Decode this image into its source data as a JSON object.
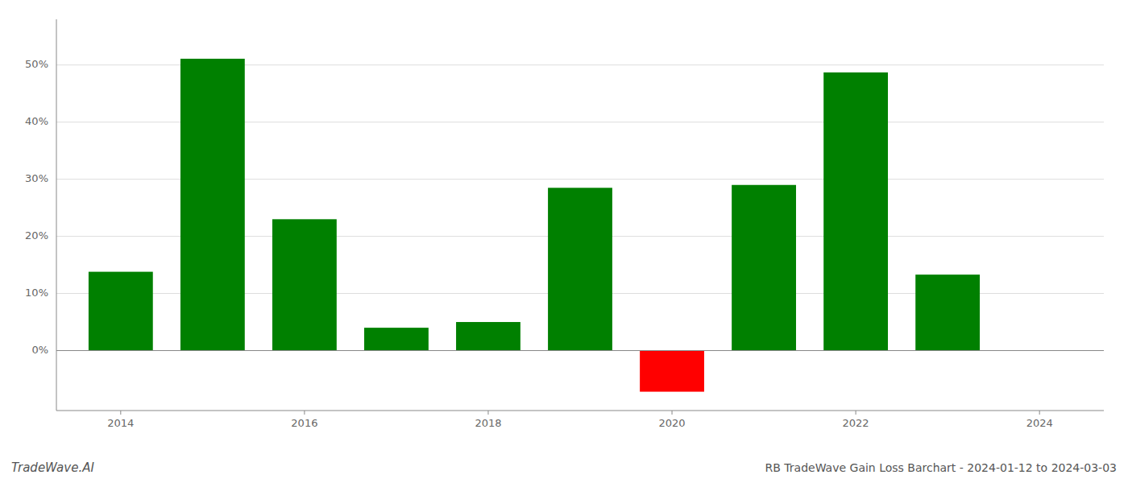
{
  "chart_data": {
    "type": "bar",
    "title": "RB TradeWave Gain Loss Barchart - 2024-01-12 to 2024-03-03",
    "annotations": [
      "TradeWave.AI"
    ],
    "x": [
      2014,
      2015,
      2016,
      2017,
      2018,
      2019,
      2020,
      2021,
      2022,
      2023
    ],
    "values": [
      0.138,
      0.511,
      0.23,
      0.04,
      0.05,
      0.285,
      -0.072,
      0.29,
      0.487,
      0.133
    ],
    "colors": [
      "#008000",
      "#008000",
      "#008000",
      "#008000",
      "#008000",
      "#008000",
      "#ff0000",
      "#008000",
      "#008000",
      "#008000"
    ],
    "xlim": [
      2013.3,
      2024.7
    ],
    "xticks": [
      2014,
      2016,
      2018,
      2020,
      2022,
      2024
    ],
    "ylim": [
      -0.105,
      0.58
    ],
    "yticks": [
      {
        "value": 0.0,
        "label": "0%"
      },
      {
        "value": 0.1,
        "label": "10%"
      },
      {
        "value": 0.2,
        "label": "20%"
      },
      {
        "value": 0.3,
        "label": "30%"
      },
      {
        "value": 0.4,
        "label": "40%"
      },
      {
        "value": 0.5,
        "label": "50%"
      }
    ],
    "grid": true
  }
}
